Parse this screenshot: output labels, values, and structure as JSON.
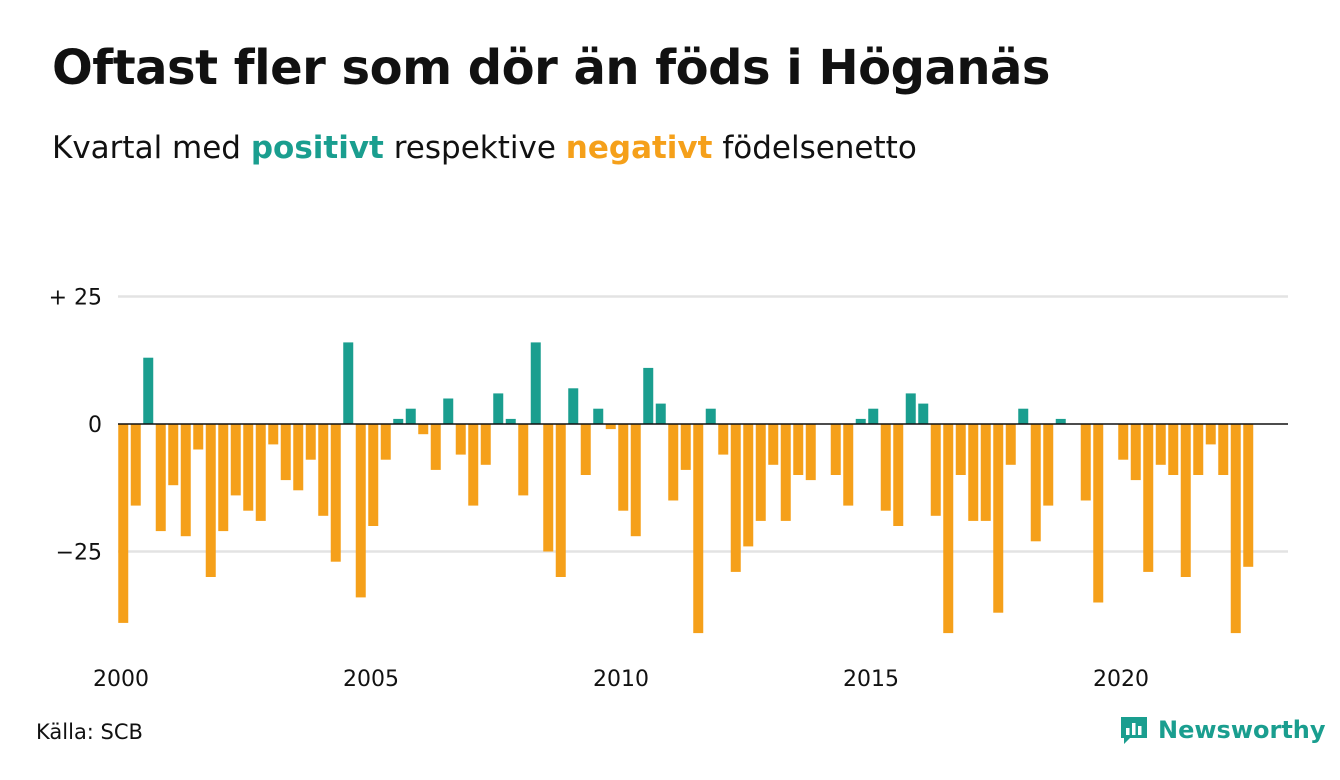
{
  "header": {
    "title": "Oftast fler som dör än föds i Höganäs",
    "subtitle_pre": "Kvartal med ",
    "subtitle_pos": "positivt",
    "subtitle_mid": " respektive ",
    "subtitle_neg": "negativt",
    "subtitle_post": " födelsenetto"
  },
  "footer": {
    "source": "Källa: SCB",
    "brand": "Newsworthy",
    "brand_icon": "bar-chart-speech-bubble-icon"
  },
  "colors": {
    "positive": "#1a9e8f",
    "negative": "#f5a01a",
    "gridline": "#e3e3e3",
    "zeroline": "#111111"
  },
  "chart_data": {
    "type": "bar",
    "title": "Oftast fler som dör än föds i Höganäs",
    "subtitle": "Kvartal med positivt respektive negativt födelsenetto",
    "xlabel": "",
    "ylabel": "",
    "ylim": [
      -43,
      27
    ],
    "y_ticks": [
      {
        "value": 25,
        "label": "+ 25"
      },
      {
        "value": 0,
        "label": "0"
      },
      {
        "value": -25,
        "label": "−25"
      }
    ],
    "x_ticks": [
      {
        "year": 2000,
        "label": "2000"
      },
      {
        "year": 2005,
        "label": "2005"
      },
      {
        "year": 2010,
        "label": "2010"
      },
      {
        "year": 2015,
        "label": "2015"
      },
      {
        "year": 2020,
        "label": "2020"
      }
    ],
    "grid": true,
    "start_year": 2000,
    "start_quarter": 1,
    "series": [
      {
        "values": [
          -39,
          -16,
          13,
          -21,
          -12,
          -22,
          -5,
          -30,
          -21,
          -14,
          -17,
          -19,
          -4,
          -11,
          -13,
          -7,
          -18,
          -27,
          16,
          -34,
          -20,
          -7,
          1,
          3,
          -2,
          -9,
          5,
          -6,
          -16,
          -8,
          6,
          1,
          -14,
          16,
          -25,
          -30,
          7,
          -10,
          3,
          -1,
          -17,
          -22,
          11,
          4,
          -15,
          -9,
          -41,
          3,
          -6,
          -29,
          -24,
          -19,
          -8,
          -19,
          -10,
          -11,
          0,
          -10,
          -16,
          1,
          3,
          -17,
          -20,
          6,
          4,
          -18,
          -41,
          -10,
          -19,
          -19,
          -37,
          -8,
          3,
          -23,
          -16,
          1,
          0,
          -15,
          -35,
          0,
          -7,
          -11,
          -29,
          -8,
          -10,
          -30,
          -10,
          -4,
          -10,
          -41,
          -28
        ]
      }
    ]
  }
}
